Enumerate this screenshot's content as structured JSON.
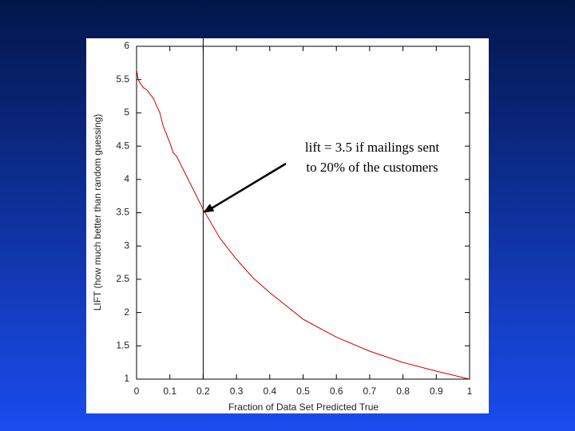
{
  "chart_data": {
    "type": "line",
    "x_label": "Fraction of Data Set Predicted True",
    "y_label": "LIFT (how much better than random guessing)",
    "x": [
      0,
      0.005,
      0.01,
      0.02,
      0.03,
      0.05,
      0.07,
      0.08,
      0.1,
      0.11,
      0.12,
      0.15,
      0.2,
      0.25,
      0.3,
      0.35,
      0.4,
      0.5,
      0.6,
      0.7,
      0.8,
      0.9,
      1
    ],
    "series": [
      {
        "name": "lift",
        "color": "#cc0000",
        "values": [
          5.65,
          5.5,
          5.45,
          5.38,
          5.35,
          5.22,
          5.0,
          4.8,
          4.55,
          4.4,
          4.35,
          4.05,
          3.55,
          3.12,
          2.8,
          2.52,
          2.3,
          1.9,
          1.63,
          1.42,
          1.25,
          1.12,
          1.0
        ]
      }
    ],
    "xlim": [
      0,
      1
    ],
    "ylim": [
      1,
      6
    ],
    "xticks": [
      0,
      0.1,
      0.2,
      0.3,
      0.4,
      0.5,
      0.6,
      0.7,
      0.8,
      0.9,
      1
    ],
    "yticks": [
      1,
      1.5,
      2,
      2.5,
      3,
      3.5,
      4,
      4.5,
      5,
      5.5,
      6
    ],
    "vline": 0.2,
    "annotation": {
      "lines": [
        "lift = 3.5 if mailings sent",
        "to 20% of the customers"
      ],
      "x": 0.2,
      "y": 3.5
    }
  }
}
